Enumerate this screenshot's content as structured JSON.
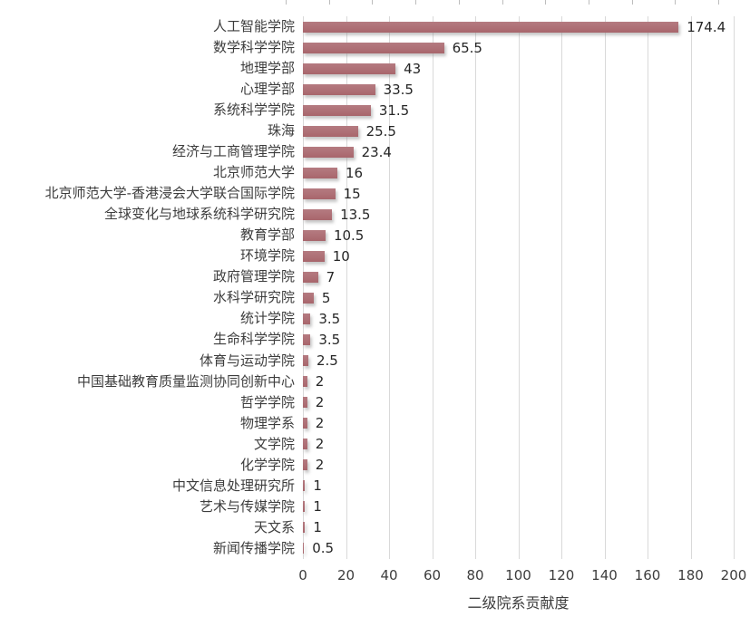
{
  "chart_data": {
    "type": "bar",
    "orientation": "horizontal",
    "title": "",
    "xlabel": "二级院系贡献度",
    "ylabel": "",
    "xlim": [
      0,
      200
    ],
    "xticks": [
      0,
      20,
      40,
      60,
      80,
      100,
      120,
      140,
      160,
      180,
      200
    ],
    "xtick_labels": [
      "0",
      "20",
      "40",
      "60",
      "80",
      "100",
      "120",
      "140",
      "160",
      "180",
      "200"
    ],
    "grid": "vertical-gridlines-on",
    "legend": "none",
    "bar_color": "#ad6d73",
    "gridline_color": "#d9d9d9",
    "categories": [
      "人工智能学院",
      "数学科学学院",
      "地理学部",
      "心理学部",
      "系统科学学院",
      "珠海",
      "经济与工商管理学院",
      "北京师范大学",
      "北京师范大学-香港浸会大学联合国际学院",
      "全球变化与地球系统科学研究院",
      "教育学部",
      "环境学院",
      "政府管理学院",
      "水科学研究院",
      "统计学院",
      "生命科学学院",
      "体育与运动学院",
      "中国基础教育质量监测协同创新中心",
      "哲学学院",
      "物理学系",
      "文学院",
      "化学学院",
      "中文信息处理研究所",
      "艺术与传媒学院",
      "天文系",
      "新闻传播学院"
    ],
    "values": [
      174.4,
      65.5,
      43,
      33.5,
      31.5,
      25.5,
      23.4,
      16,
      15,
      13.5,
      10.5,
      10,
      7,
      5,
      3.5,
      3.5,
      2.5,
      2,
      2,
      2,
      2,
      2,
      1,
      1,
      1,
      0.5
    ],
    "value_labels": [
      "174.4",
      "65.5",
      "43",
      "33.5",
      "31.5",
      "25.5",
      "23.4",
      "16",
      "15",
      "13.5",
      "10.5",
      "10",
      "7",
      "5",
      "3.5",
      "3.5",
      "2.5",
      "2",
      "2",
      "2",
      "2",
      "2",
      "1",
      "1",
      "1",
      "0.5"
    ]
  }
}
